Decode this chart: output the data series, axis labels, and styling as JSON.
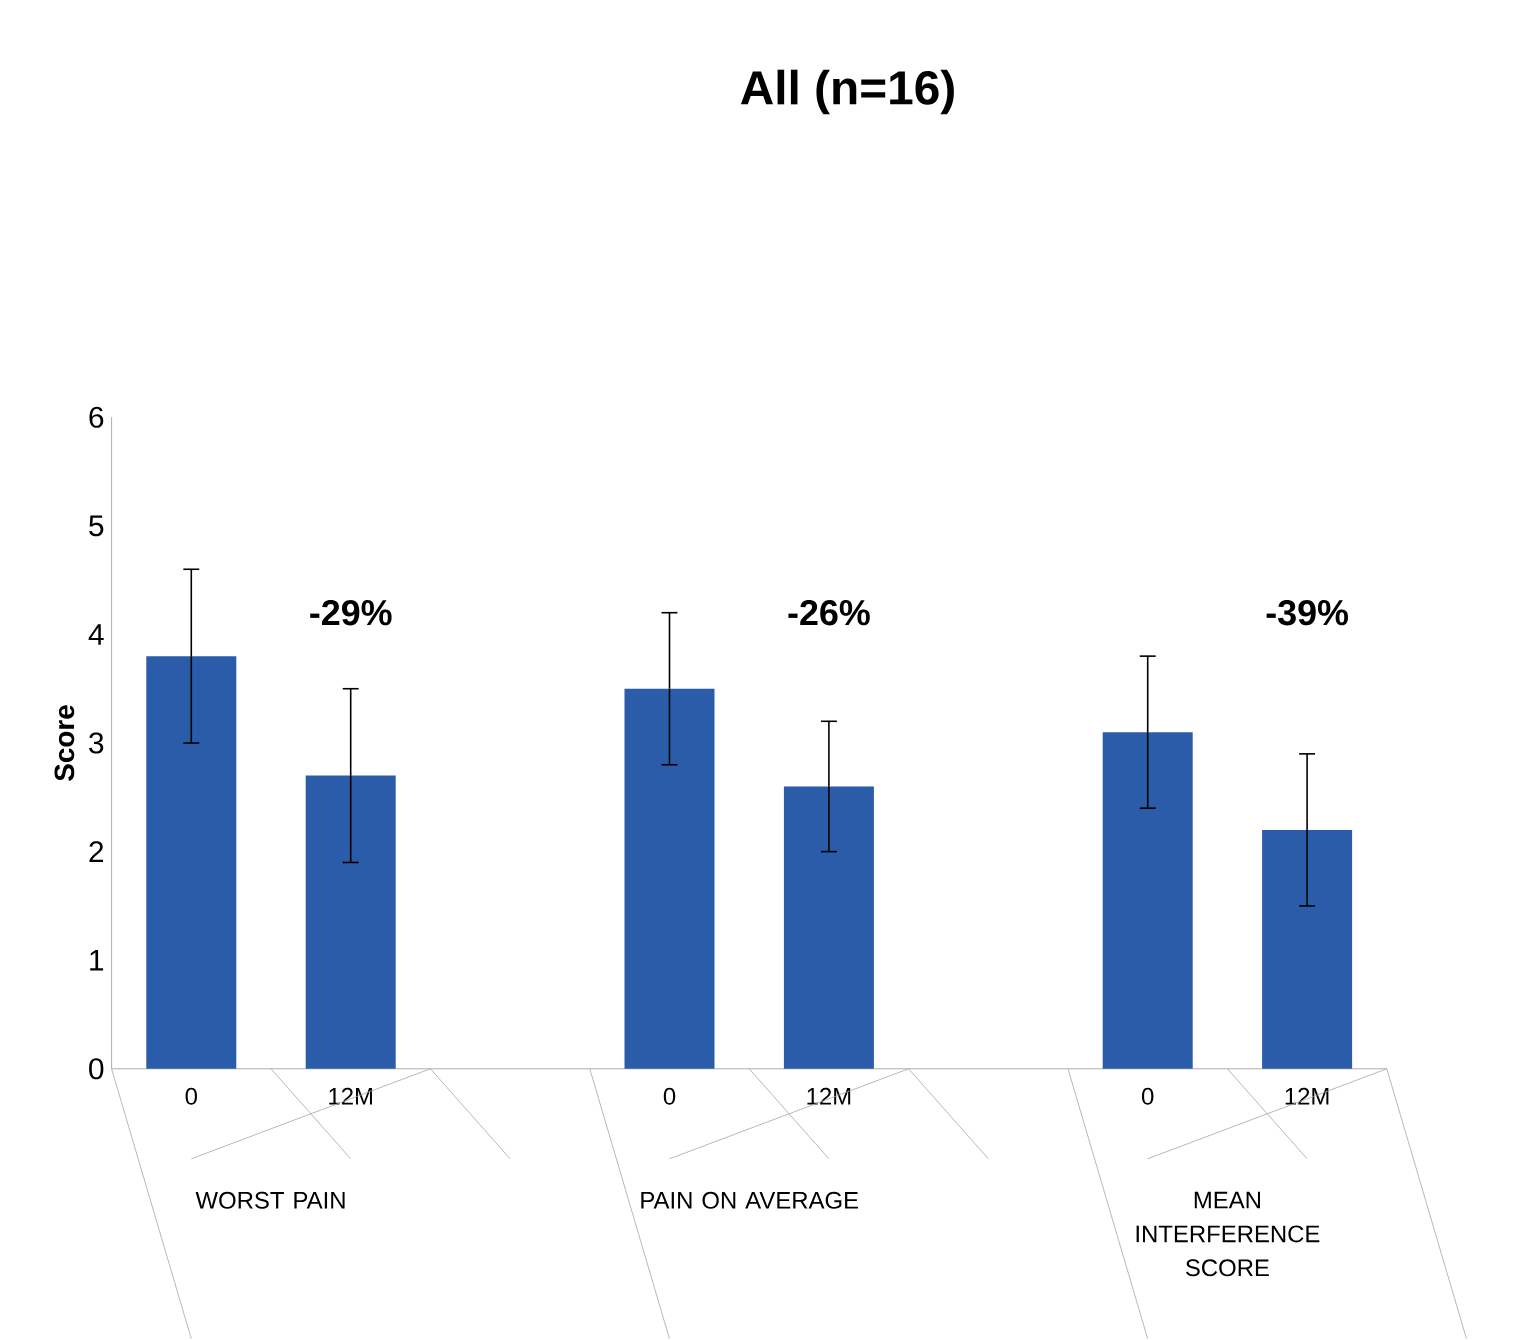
{
  "chart_data": {
    "type": "bar",
    "title": "All (n=16)",
    "ylabel": "Score",
    "categories": [
      "0",
      "12M",
      null,
      "0",
      "12M",
      null,
      "0",
      "12M"
    ],
    "values": [
      3.8,
      2.7,
      null,
      3.5,
      2.6,
      null,
      3.1,
      2.2
    ],
    "errors": [
      [
        3.0,
        4.6
      ],
      [
        1.9,
        3.5
      ],
      null,
      [
        2.8,
        4.2
      ],
      [
        2.0,
        3.2
      ],
      null,
      [
        2.4,
        3.8
      ],
      [
        1.5,
        2.9
      ]
    ],
    "color": "#2a5caa",
    "ylim": [
      0,
      6
    ],
    "yticks": [
      0,
      1,
      2,
      3,
      4,
      5,
      6
    ],
    "annotations": [
      "WORST PAIN",
      "PAIN ON AVERAGE",
      "MEAN INTERFERENCE SCORE",
      "-29%",
      "-26%",
      "-39%"
    ],
    "grid": false
  }
}
